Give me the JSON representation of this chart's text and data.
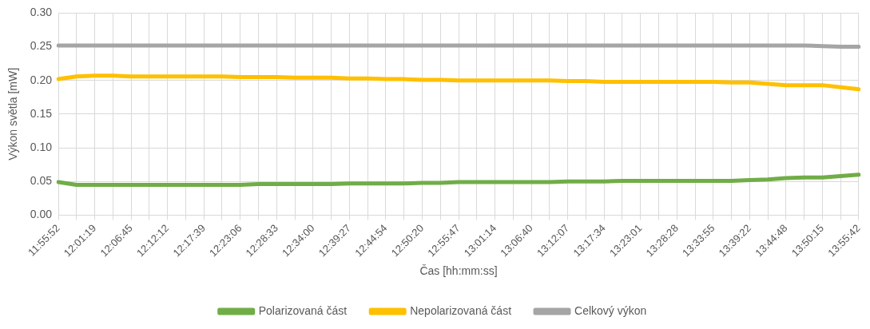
{
  "chart_data": {
    "type": "line",
    "xlabel": "Čas [hh:mm:ss]",
    "ylabel": "Výkon světla [mW]",
    "categories": [
      "11:55:52",
      null,
      "12:01:19",
      null,
      "12:06:45",
      null,
      "12:12:12",
      null,
      "12:17:39",
      null,
      "12:23:06",
      null,
      "12:28:33",
      null,
      "12:34:00",
      null,
      "12:39:27",
      null,
      "12:44:54",
      null,
      "12:50:20",
      null,
      "12:55:47",
      null,
      "13:01:14",
      null,
      "13:06:40",
      null,
      "13:12:07",
      null,
      "13:17:34",
      null,
      "13:23:01",
      null,
      "13:28:28",
      null,
      "13:33:55",
      null,
      "13:39:22",
      null,
      "13:44:48",
      null,
      "13:50:15",
      null,
      "13:55:42"
    ],
    "series": [
      {
        "name": "Polarizovaná část",
        "color": "#70ad47",
        "values": [
          0.049,
          0.045,
          0.045,
          0.045,
          0.045,
          0.045,
          0.045,
          0.045,
          0.045,
          0.045,
          0.045,
          0.046,
          0.046,
          0.046,
          0.046,
          0.046,
          0.047,
          0.047,
          0.047,
          0.047,
          0.048,
          0.048,
          0.049,
          0.049,
          0.049,
          0.049,
          0.049,
          0.049,
          0.05,
          0.05,
          0.05,
          0.051,
          0.051,
          0.051,
          0.051,
          0.051,
          0.051,
          0.051,
          0.052,
          0.053,
          0.055,
          0.056,
          0.056,
          0.058,
          0.06
        ]
      },
      {
        "name": "Nepolarizovaná část",
        "color": "#ffc000",
        "values": [
          0.202,
          0.206,
          0.207,
          0.207,
          0.206,
          0.206,
          0.206,
          0.206,
          0.206,
          0.206,
          0.205,
          0.205,
          0.205,
          0.204,
          0.204,
          0.204,
          0.203,
          0.203,
          0.202,
          0.202,
          0.201,
          0.201,
          0.2,
          0.2,
          0.2,
          0.2,
          0.2,
          0.2,
          0.199,
          0.199,
          0.198,
          0.198,
          0.198,
          0.198,
          0.198,
          0.198,
          0.198,
          0.197,
          0.197,
          0.195,
          0.193,
          0.193,
          0.193,
          0.19,
          0.187
        ]
      },
      {
        "name": "Celkový výkon",
        "color": "#a5a5a5",
        "values": [
          0.252,
          0.252,
          0.252,
          0.252,
          0.252,
          0.252,
          0.252,
          0.252,
          0.252,
          0.252,
          0.252,
          0.252,
          0.252,
          0.252,
          0.252,
          0.252,
          0.252,
          0.252,
          0.252,
          0.252,
          0.252,
          0.252,
          0.252,
          0.252,
          0.252,
          0.252,
          0.252,
          0.252,
          0.252,
          0.252,
          0.252,
          0.252,
          0.252,
          0.252,
          0.252,
          0.252,
          0.252,
          0.252,
          0.252,
          0.252,
          0.252,
          0.252,
          0.251,
          0.25,
          0.25
        ]
      }
    ],
    "ylim": [
      0,
      0.3
    ],
    "yticks": [
      {
        "value": 0,
        "label": "0.00"
      },
      {
        "value": 0.05,
        "label": "0.05"
      },
      {
        "value": 0.1,
        "label": "0.10"
      },
      {
        "value": 0.15,
        "label": "0.15"
      },
      {
        "value": 0.2,
        "label": "0.20"
      },
      {
        "value": 0.25,
        "label": "0.25"
      },
      {
        "value": 0.3,
        "label": "0.30"
      }
    ],
    "grid": true,
    "legend": "bottom",
    "marker": "none",
    "line_style": "solid"
  }
}
